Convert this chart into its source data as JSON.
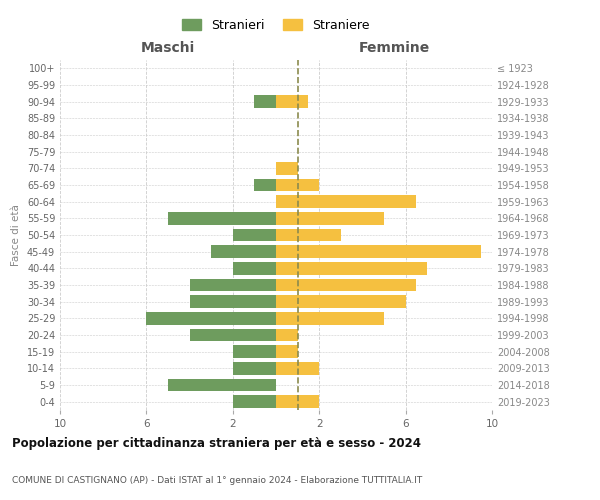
{
  "age_groups": [
    "0-4",
    "5-9",
    "10-14",
    "15-19",
    "20-24",
    "25-29",
    "30-34",
    "35-39",
    "40-44",
    "45-49",
    "50-54",
    "55-59",
    "60-64",
    "65-69",
    "70-74",
    "75-79",
    "80-84",
    "85-89",
    "90-94",
    "95-99",
    "100+"
  ],
  "birth_years": [
    "2019-2023",
    "2014-2018",
    "2009-2013",
    "2004-2008",
    "1999-2003",
    "1994-1998",
    "1989-1993",
    "1984-1988",
    "1979-1983",
    "1974-1978",
    "1969-1973",
    "1964-1968",
    "1959-1963",
    "1954-1958",
    "1949-1953",
    "1944-1948",
    "1939-1943",
    "1934-1938",
    "1929-1933",
    "1924-1928",
    "≤ 1923"
  ],
  "maschi": [
    2,
    5,
    2,
    2,
    4,
    6,
    4,
    4,
    2,
    3,
    2,
    5,
    0,
    1,
    0,
    0,
    0,
    0,
    1,
    0,
    0
  ],
  "femmine": [
    2,
    0,
    2,
    1,
    1,
    5,
    6,
    6.5,
    7,
    9.5,
    3,
    5,
    6.5,
    2,
    1,
    0,
    0,
    0,
    1.5,
    0,
    0
  ],
  "maschi_color": "#6e9c5e",
  "femmine_color": "#f5c040",
  "dashed_line_color": "#8b8b4e",
  "title": "Popolazione per cittadinanza straniera per età e sesso - 2024",
  "subtitle": "COMUNE DI CASTIGNANO (AP) - Dati ISTAT al 1° gennaio 2024 - Elaborazione TUTTITALIA.IT",
  "xlabel_left": "Maschi",
  "xlabel_right": "Femmine",
  "ylabel_left": "Fasce di età",
  "legend_maschi": "Stranieri",
  "legend_femmine": "Straniere",
  "xlim": 10,
  "bg_color": "#ffffff",
  "grid_color": "#cccccc"
}
